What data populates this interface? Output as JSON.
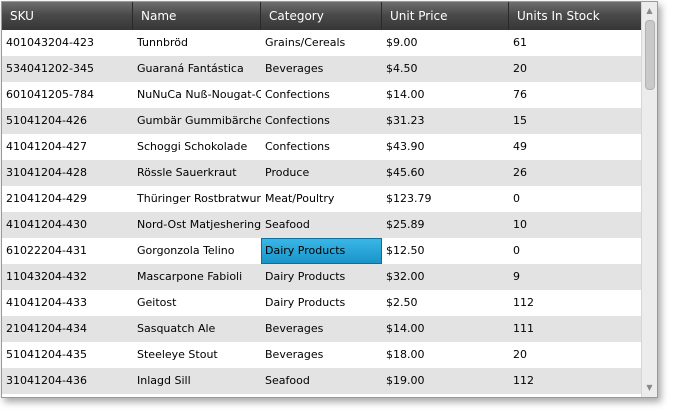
{
  "grid": {
    "columns": [
      "SKU",
      "Name",
      "Category",
      "Unit Price",
      "Units In Stock"
    ],
    "rows": [
      [
        "401043204-423",
        "Tunnbröd",
        "Grains/Cereals",
        "$9.00",
        "61"
      ],
      [
        "534041202-345",
        "Guaraná Fantástica",
        "Beverages",
        "$4.50",
        "20"
      ],
      [
        "601041205-784",
        "NuNuCa Nuß-Nougat-Creme",
        "Confections",
        "$14.00",
        "76"
      ],
      [
        "51041204-426",
        "Gumbär Gummibärchen",
        "Confections",
        "$31.23",
        "15"
      ],
      [
        "41041204-427",
        "Schoggi Schokolade",
        "Confections",
        "$43.90",
        "49"
      ],
      [
        "31041204-428",
        "Rössle Sauerkraut",
        "Produce",
        "$45.60",
        "26"
      ],
      [
        "21041204-429",
        "Thüringer Rostbratwurst",
        "Meat/Poultry",
        "$123.79",
        "0"
      ],
      [
        "41041204-430",
        "Nord-Ost Matjeshering",
        "Seafood",
        "$25.89",
        "10"
      ],
      [
        "61022204-431",
        "Gorgonzola Telino",
        "Dairy Products",
        "$12.50",
        "0"
      ],
      [
        "11043204-432",
        "Mascarpone Fabioli",
        "Dairy Products",
        "$32.00",
        "9"
      ],
      [
        "41041204-433",
        "Geitost",
        "Dairy Products",
        "$2.50",
        "112"
      ],
      [
        "21041204-434",
        "Sasquatch Ale",
        "Beverages",
        "$14.00",
        "111"
      ],
      [
        "51041204-435",
        "Steeleye Stout",
        "Beverages",
        "$18.00",
        "20"
      ],
      [
        "31041204-436",
        "Inlagd Sill",
        "Seafood",
        "$19.00",
        "112"
      ]
    ],
    "selected_cell": {
      "row": 8,
      "column": 2
    }
  },
  "scrollbar": {
    "up_icon": "scroll-up-arrow-icon",
    "down_icon": "scroll-down-arrow-icon"
  },
  "colors": {
    "header_top": "#6e6e6e",
    "header_bottom": "#363636",
    "alt_row": "#e3e3e3",
    "selection": "#2aa7dc"
  }
}
